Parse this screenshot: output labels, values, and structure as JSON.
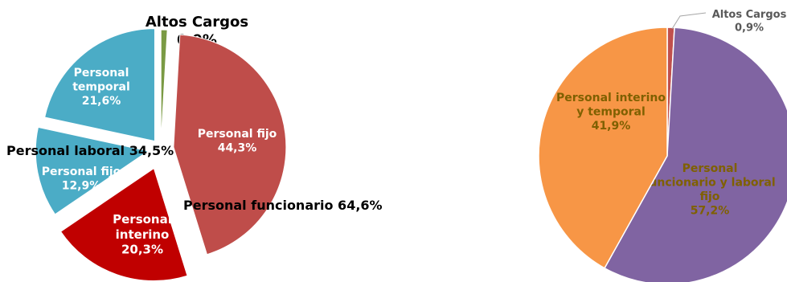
{
  "chart_data": [
    {
      "type": "pie",
      "title": "",
      "slices": [
        {
          "id": "altos",
          "label_lines": [
            "Altos Cargos",
            "0,9%"
          ],
          "value": 0.9,
          "color": "#7a9a44",
          "exploded": true
        },
        {
          "id": "func-fijo",
          "label_lines": [
            "Personal fijo",
            "44,3%"
          ],
          "value": 44.3,
          "color": "#bf4d4a",
          "exploded": true
        },
        {
          "id": "interino",
          "label_lines": [
            "Personal",
            "interino",
            "20,3%"
          ],
          "value": 20.3,
          "color": "#c00000",
          "exploded": true
        },
        {
          "id": "lab-fijo",
          "label_lines": [
            "Personal fijo",
            "12,9%"
          ],
          "value": 12.9,
          "color": "#4bacc6",
          "exploded": true
        },
        {
          "id": "temporal",
          "label_lines": [
            "Personal",
            "temporal",
            "21,6%"
          ],
          "value": 21.6,
          "color": "#4bacc6",
          "exploded": true
        }
      ],
      "group_labels": [
        {
          "id": "laboral",
          "text": "Personal laboral 34,5%"
        },
        {
          "id": "funcionario",
          "text": "Personal funcionario 64,6%"
        }
      ]
    },
    {
      "type": "pie",
      "title": "",
      "slices": [
        {
          "id": "altos",
          "label_lines": [
            "Altos Cargos",
            "0,9%"
          ],
          "value": 0.9,
          "color": "#c0504d"
        },
        {
          "id": "func-lab-fijo",
          "label_lines": [
            "Personal",
            "funcionario y laboral",
            "fijo",
            "57,2%"
          ],
          "value": 57.2,
          "color": "#8064a2"
        },
        {
          "id": "int-temp",
          "label_lines": [
            "Personal interino",
            "y temporal",
            "41,9%"
          ],
          "value": 41.9,
          "color": "#f79646"
        }
      ]
    }
  ]
}
